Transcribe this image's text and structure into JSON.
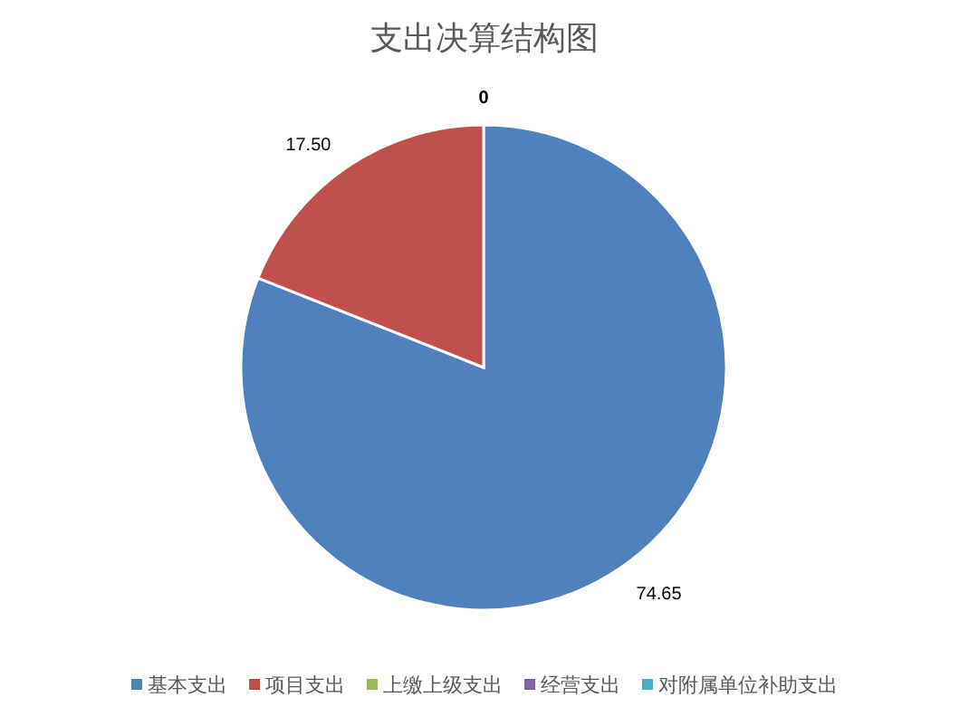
{
  "chart_data": {
    "type": "pie",
    "title": "支出决算结构图",
    "categories": [
      "基本支出",
      "项目支出",
      "上缴上级支出",
      "经营支出",
      "对附属单位补助支出"
    ],
    "values": [
      74.65,
      17.5,
      0,
      0,
      0
    ],
    "colors": [
      "#4f81bd",
      "#c0504d",
      "#9bbb59",
      "#8064a2",
      "#4bacc6"
    ],
    "value_labels": [
      "74.65",
      "17.50",
      "0",
      null,
      null
    ],
    "legend": "bottom"
  }
}
